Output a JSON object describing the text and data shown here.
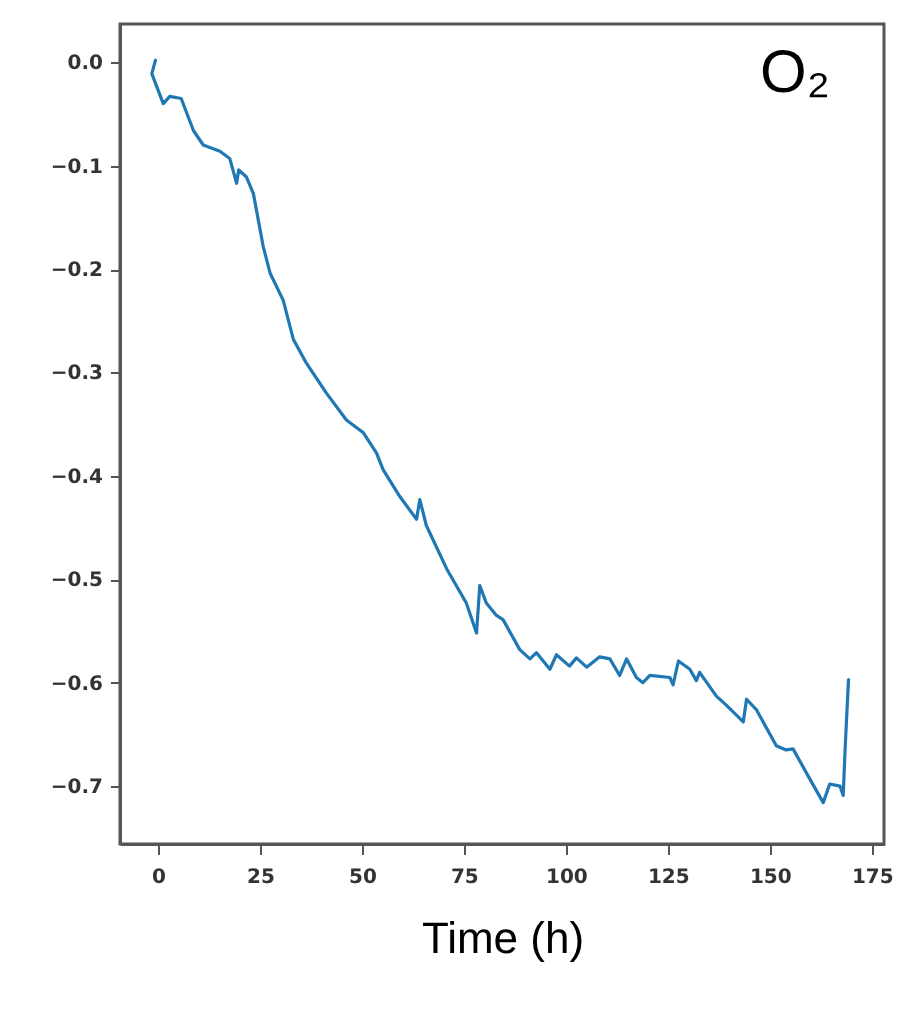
{
  "chart_data": {
    "type": "line",
    "xlabel": "Time (h)",
    "annotations": [
      "O₂"
    ],
    "grid": false,
    "marker": "none",
    "line_style": "solid",
    "xlim": [
      -9.3,
      178
    ],
    "ylim": [
      -0.756,
      0.037
    ],
    "xticks": [
      0,
      25,
      50,
      75,
      100,
      125,
      150,
      175
    ],
    "yticks": [
      {
        "value": 0,
        "label": "0.0"
      },
      {
        "value": -0.1,
        "label": "−0.1"
      },
      {
        "value": -0.2,
        "label": "−0.2"
      },
      {
        "value": -0.3,
        "label": "−0.3"
      },
      {
        "value": -0.4,
        "label": "−0.4"
      },
      {
        "value": -0.5,
        "label": "−0.5"
      },
      {
        "value": -0.6,
        "label": "−0.6"
      },
      {
        "value": -0.7,
        "label": "−0.7"
      }
    ],
    "series": [
      {
        "color": "#1f77b4",
        "x": [
          -0.6,
          -1.5,
          1.3,
          2.9,
          5.7,
          8.7,
          11.1,
          15.2,
          17.6,
          19.3,
          19.8,
          21.7,
          23.4,
          25.8,
          27.5,
          30.7,
          33.2,
          36.4,
          41.3,
          46.2,
          50.3,
          53.6,
          55.2,
          59.3,
          63.4,
          64.2,
          65.8,
          70.8,
          75.6,
          78.1,
          78.9,
          80.5,
          83,
          84.6,
          88.7,
          91.2,
          92.8,
          96.1,
          97.7,
          100.9,
          102.6,
          105.1,
          108.3,
          110.8,
          113.2,
          114.9,
          117.3,
          118.9,
          120.6,
          125.5,
          126.3,
          127.6,
          130.4,
          132,
          132.8,
          136.9,
          139.4,
          143.5,
          144.3,
          146.7,
          151.6,
          154,
          155.7,
          159.8,
          163.1,
          164.7,
          167.2,
          168,
          168.5,
          169.3
        ],
        "values": [
          0.002,
          -0.011,
          -0.04,
          -0.033,
          -0.035,
          -0.066,
          -0.08,
          -0.086,
          -0.093,
          -0.117,
          -0.104,
          -0.111,
          -0.127,
          -0.178,
          -0.204,
          -0.23,
          -0.268,
          -0.291,
          -0.32,
          -0.346,
          -0.358,
          -0.378,
          -0.394,
          -0.42,
          -0.442,
          -0.423,
          -0.448,
          -0.49,
          -0.523,
          -0.552,
          -0.506,
          -0.523,
          -0.535,
          -0.539,
          -0.568,
          -0.577,
          -0.571,
          -0.587,
          -0.573,
          -0.584,
          -0.576,
          -0.585,
          -0.575,
          -0.577,
          -0.593,
          -0.577,
          -0.595,
          -0.6,
          -0.593,
          -0.595,
          -0.602,
          -0.579,
          -0.587,
          -0.598,
          -0.59,
          -0.613,
          -0.622,
          -0.638,
          -0.616,
          -0.626,
          -0.661,
          -0.665,
          -0.664,
          -0.693,
          -0.716,
          -0.698,
          -0.7,
          -0.709,
          -0.661,
          -0.597
        ]
      }
    ]
  }
}
